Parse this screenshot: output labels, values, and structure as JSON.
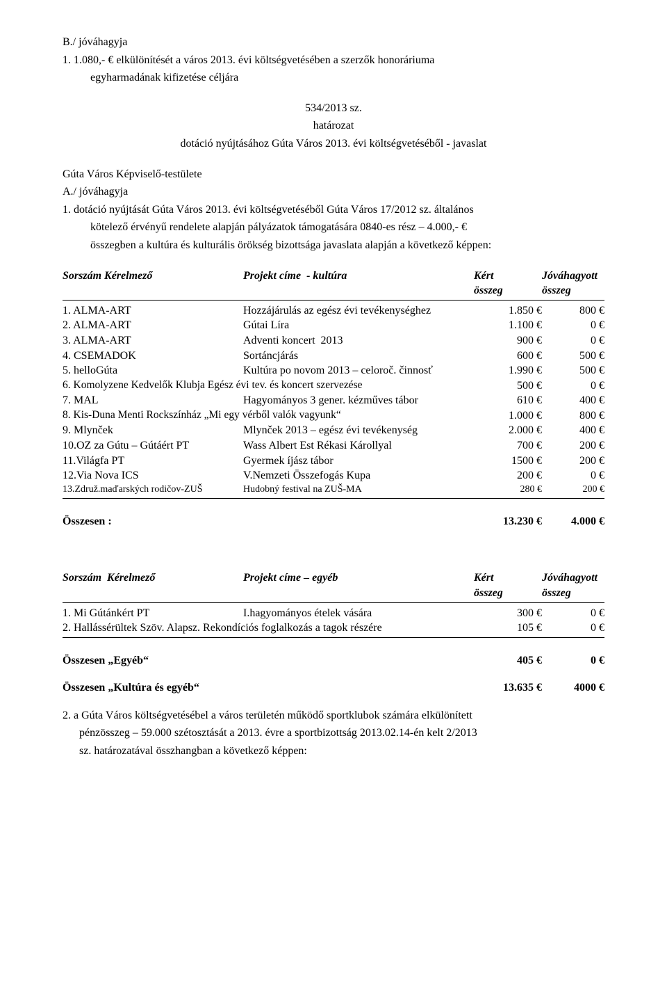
{
  "intro": {
    "l1": "B./ jóváhagyja",
    "l2": "1. 1.080,- € elkülönítését a város 2013. évi költségvetésében a szerzők honoráriuma",
    "l3": "egyharmadának   kifizetése céljára",
    "c1": "534/2013 sz.",
    "c2": "határozat",
    "c3": "dotáció nyújtásához Gúta Város 2013. évi költségvetéséből - javaslat",
    "l4": "Gúta Város Képviselő-testülete",
    "l5": "A./ jóváhagyja",
    "l6": "1.  dotáció nyújtását Gúta Város 2013. évi költségvetéséből Gúta Város 17/2012 sz. általános",
    "l7": "kötelező érvényű rendelete alapján pályázatok támogatására 0840-es rész – 4.000,- €",
    "l8": "összegben a kultúra és kulturális örökség bizottsága javaslata alapján a következő képpen:"
  },
  "hdr1": {
    "c1": "Sorszám Kérelmező",
    "c2": "Projekt címe  - kultúra",
    "c3": "Kért",
    "c4": "Jóváhagyott",
    "c5": "összeg",
    "c6": "összeg"
  },
  "rows1": [
    {
      "a": "1. ALMA-ART",
      "b": "Hozzájárulás az egész évi tevékenységhez",
      "c": "1.850 €",
      "d": "800 €"
    },
    {
      "a": "2. ALMA-ART",
      "b": "Gútai Líra",
      "c": "1.100 €",
      "d": "0 €"
    },
    {
      "a": "3. ALMA-ART",
      "b": "Adventi koncert  2013",
      "c": "900 €",
      "d": "0 €"
    },
    {
      "a": "4. CSEMADOK",
      "b": "Sortáncjárás",
      "c": "600 €",
      "d": "500 €"
    },
    {
      "a": "5. helloGúta",
      "b": "Kultúra po novom 2013 – celoroč. činnosť",
      "c": "1.990 €",
      "d": "500 €"
    },
    {
      "a": "6. Komolyzene Kedvelők Klubja Egész évi tev. és koncert szervezése",
      "b": "",
      "c": "500 €",
      "d": "0 €"
    },
    {
      "a": "7. MAL",
      "b": "Hagyományos 3 gener. kézműves tábor",
      "c": "610 €",
      "d": "400 €"
    },
    {
      "a": "8. Kis-Duna Menti Rockszínház „Mi egy vérből valók vagyunk“",
      "b": "",
      "c": "1.000 €",
      "d": "800 €"
    },
    {
      "a": "9. Mlynček",
      "b": "Mlynček 2013 – egész évi tevékenység",
      "c": "2.000 €",
      "d": "400 €"
    },
    {
      "a": "10.OZ za Gútu – Gútáért PT",
      "b": "Wass Albert Est Rékasi Károllyal",
      "c": "700 €",
      "d": "200 €"
    },
    {
      "a": "11.Világfa PT",
      "b": "Gyermek íjász tábor",
      "c": "1500 €",
      "d": "200 €"
    },
    {
      "a": "12.Via Nova ICS",
      "b": "V.Nemzeti Összefogás Kupa",
      "c": "200 €",
      "d": "0 €"
    },
    {
      "a": "13.Združ.maďarských rodičov-ZUŠ",
      "b": "Hudobný festival na ZUŠ-MA",
      "c": "280 €",
      "d": "200 €"
    }
  ],
  "tot1": {
    "label": "Összesen :",
    "a": "13.230 €",
    "b": "4.000 €"
  },
  "hdr2": {
    "c1": "Sorszám  Kérelmező",
    "c2": "Projekt címe – egyéb",
    "c3": "Kért",
    "c4": "Jóváhagyott",
    "c5": "összeg",
    "c6": "összeg"
  },
  "rows2": [
    {
      "a": "1. Mi Gútánkért PT",
      "b": "I.hagyományos ételek vására",
      "c": "300 €",
      "d": "0 €"
    },
    {
      "a": "2. Hallássérültek Szöv. Alapsz. Rekondíciós foglalkozás a tagok részére",
      "b": "",
      "c": "105 €",
      "d": "0 €"
    }
  ],
  "tot2": {
    "label": "Összesen    „Egyéb“",
    "a": "405 €",
    "b": "0 €"
  },
  "tot3": {
    "label": "Összesen    „Kultúra és egyéb“",
    "a": "13.635 €",
    "b": "4000 €"
  },
  "foot": {
    "l1": "2. a Gúta Város költségvetésébel a város területén működő sportklubok számára elkülönített",
    "l2": "pénzösszeg – 59.000 szétosztását a 2013. évre a sportbizottság 2013.02.14-én kelt 2/2013",
    "l3": "sz. határozatával összhangban a következő képpen:"
  }
}
